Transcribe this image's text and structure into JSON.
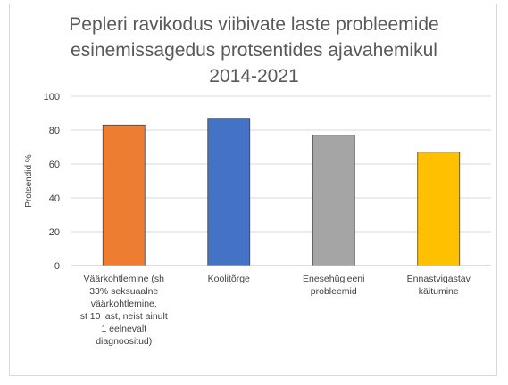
{
  "chart_data": {
    "type": "bar",
    "title": "Pepleri ravikodus viibivate laste probleemide\nesinemissagedus protsentides ajavahemikul\n2014-2021",
    "xlabel": "",
    "ylabel": "Protsendid %",
    "ylim": [
      0,
      100
    ],
    "yticks": [
      "0",
      "20",
      "40",
      "60",
      "80",
      "100"
    ],
    "grid": true,
    "legend": "none",
    "categories": [
      "Väärkohtlemine    (sh\n33% seksuaalne\nväärkohtlemine,\nst 10 last, neist ainult\n1 eelnevalt\ndiagnoositud)",
      "Koolitõrge",
      "Enesehügieeni\nprobleemid",
      "Ennastvigastav\nkäitumine"
    ],
    "values": [
      83,
      87,
      77,
      67
    ],
    "colors": [
      "#ed7d31",
      "#4472c4",
      "#a5a5a5",
      "#ffc000"
    ]
  }
}
